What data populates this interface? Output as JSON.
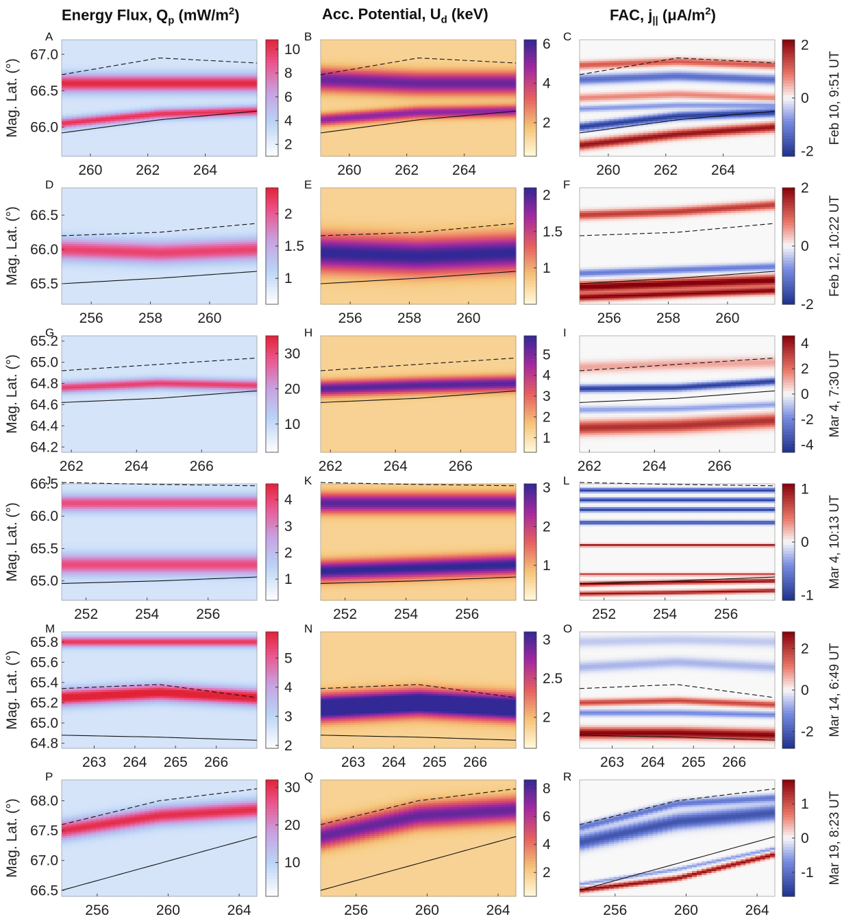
{
  "column_titles": {
    "energy": {
      "main": "Energy Flux, Q",
      "sub": "p",
      "unit": " (mW/m",
      "sup": "2",
      "close": ")"
    },
    "potential": {
      "main": "Acc. Potential, U",
      "sub": "d",
      "unit": " (keV)"
    },
    "fac": {
      "main": "FAC, j",
      "sub": "||",
      "unit": " (μA/m",
      "sup": "2",
      "close": ")"
    }
  },
  "ylabel": "Mag. Lat. (°)",
  "chart_data": [
    {
      "type": "heatmap",
      "panel": "A",
      "quantity": "Energy Flux, Qp (mW/m2)",
      "row_label": "Feb 10, 9:51 UT",
      "xlim": [
        259,
        265.8
      ],
      "xticks": [
        "260",
        "262",
        "264"
      ],
      "ylim": [
        65.6,
        67.2
      ],
      "yticks": [
        "66.0",
        "66.5",
        "67.0"
      ],
      "clim": [
        1,
        10.8
      ],
      "cticks": [
        "2",
        "4",
        "6",
        "8",
        "10"
      ],
      "colormap": "bluered",
      "bands": [
        {
          "y": [
            66.6,
            66.6,
            66.6
          ],
          "w": 0.12,
          "a": 9.5
        },
        {
          "y": [
            66.05,
            66.18,
            66.22
          ],
          "w": 0.07,
          "a": 9
        }
      ]
    },
    {
      "type": "heatmap",
      "panel": "B",
      "quantity": "Acc. Potential, Ud (keV)",
      "row_label": "Feb 10, 9:51 UT",
      "xlim": [
        259,
        265.8
      ],
      "xticks": [
        "260",
        "262",
        "264"
      ],
      "ylim": [
        65.6,
        67.2
      ],
      "yticks": [
        "66.0",
        "66.5",
        "67.0"
      ],
      "clim": [
        0.3,
        6.2
      ],
      "cticks": [
        "2",
        "4",
        "6"
      ],
      "colormap": "plasma",
      "bands": [
        {
          "y": [
            66.65,
            66.6,
            66.6
          ],
          "w": 0.15,
          "a": 5
        },
        {
          "y": [
            66.1,
            66.2,
            66.22
          ],
          "w": 0.08,
          "a": 4.5
        }
      ]
    },
    {
      "type": "heatmap",
      "panel": "C",
      "quantity": "FAC, j|| (μA/m2)",
      "row_label": "Feb 10, 9:51 UT",
      "xlim": [
        259,
        265.8
      ],
      "xticks": [
        "260",
        "262",
        "264"
      ],
      "ylim": [
        65.6,
        67.2
      ],
      "yticks": [
        "66.0",
        "66.5",
        "67.0"
      ],
      "clim": [
        -2.2,
        2.2
      ],
      "cticks": [
        "2",
        "0",
        "-2"
      ],
      "colormap": "diverging",
      "bands": [
        {
          "y": [
            66.0,
            66.15,
            66.2
          ],
          "w": 0.05,
          "a": -2
        },
        {
          "y": [
            65.75,
            65.9,
            66.0
          ],
          "w": 0.06,
          "a": 2
        },
        {
          "y": [
            66.85,
            66.9,
            66.85
          ],
          "w": 0.05,
          "a": 1.2
        },
        {
          "y": [
            66.65,
            66.7,
            66.65
          ],
          "w": 0.06,
          "a": -1.3
        },
        {
          "y": [
            66.4,
            66.45,
            66.4
          ],
          "w": 0.05,
          "a": 0.8
        },
        {
          "y": [
            66.25,
            66.3,
            66.3
          ],
          "w": 0.04,
          "a": -0.8
        }
      ]
    },
    {
      "type": "heatmap",
      "panel": "D",
      "quantity": "Energy Flux, Qp (mW/m2)",
      "row_label": "Feb 12, 10:22 UT",
      "xlim": [
        255,
        261.6
      ],
      "xticks": [
        "256",
        "258",
        "260"
      ],
      "ylim": [
        65.2,
        66.9
      ],
      "yticks": [
        "65.5",
        "66.0",
        "66.5"
      ],
      "clim": [
        0.6,
        2.4
      ],
      "cticks": [
        "1",
        "1.5",
        "2"
      ],
      "colormap": "bluered",
      "bands": [
        {
          "y": [
            66.0,
            65.95,
            66.0
          ],
          "w": 0.15,
          "a": 1.8
        }
      ]
    },
    {
      "type": "heatmap",
      "panel": "E",
      "quantity": "Acc. Potential, Ud (keV)",
      "row_label": "Feb 12, 10:22 UT",
      "xlim": [
        255,
        261.6
      ],
      "xticks": [
        "256",
        "258",
        "260"
      ],
      "ylim": [
        65.2,
        66.9
      ],
      "yticks": [
        "66.0",
        "66.5"
      ],
      "clim": [
        0.5,
        2.1
      ],
      "cticks": [
        "1",
        "1.5",
        "2"
      ],
      "colormap": "plasma",
      "bands": [
        {
          "y": [
            65.95,
            65.9,
            65.95
          ],
          "w": 0.25,
          "a": 1.8
        }
      ]
    },
    {
      "type": "heatmap",
      "panel": "F",
      "quantity": "FAC, j|| (μA/m2)",
      "row_label": "Feb 12, 10:22 UT",
      "xlim": [
        255,
        261.6
      ],
      "xticks": [
        "256",
        "258",
        "260"
      ],
      "ylim": [
        65.2,
        66.9
      ],
      "yticks": [
        "66.0",
        "66.5"
      ],
      "clim": [
        -2,
        2
      ],
      "cticks": [
        "2",
        "0",
        "-2"
      ],
      "colormap": "diverging",
      "bands": [
        {
          "y": [
            66.5,
            66.55,
            66.65
          ],
          "w": 0.06,
          "a": 1.4
        },
        {
          "y": [
            65.45,
            65.5,
            65.55
          ],
          "w": 0.07,
          "a": 2.2
        },
        {
          "y": [
            65.3,
            65.35,
            65.4
          ],
          "w": 0.05,
          "a": 2
        },
        {
          "y": [
            65.65,
            65.7,
            65.75
          ],
          "w": 0.05,
          "a": -1
        }
      ]
    },
    {
      "type": "heatmap",
      "panel": "G",
      "quantity": "Energy Flux, Qp (mW/m2)",
      "row_label": "Mar 4, 7:30 UT",
      "xlim": [
        261.7,
        267.7
      ],
      "xticks": [
        "262",
        "264",
        "266"
      ],
      "ylim": [
        64.15,
        65.25
      ],
      "yticks": [
        "64.2",
        "64.4",
        "64.6",
        "64.8",
        "65.0",
        "65.2"
      ],
      "clim": [
        2,
        35
      ],
      "cticks": [
        "10",
        "20",
        "30"
      ],
      "colormap": "bluered",
      "bands": [
        {
          "y": [
            64.76,
            64.8,
            64.78
          ],
          "w": 0.05,
          "a": 28
        }
      ]
    },
    {
      "type": "heatmap",
      "panel": "H",
      "quantity": "Acc. Potential, Ud (keV)",
      "row_label": "Mar 4, 7:30 UT",
      "xlim": [
        261.7,
        267.7
      ],
      "xticks": [
        "262",
        "264",
        "266"
      ],
      "ylim": [
        64.15,
        65.25
      ],
      "yticks": [
        "64.2",
        "64.4"
      ],
      "clim": [
        0.3,
        5.9
      ],
      "cticks": [
        "1",
        "2",
        "3",
        "4",
        "5"
      ],
      "colormap": "plasma",
      "bands": [
        {
          "y": [
            64.75,
            64.78,
            64.8
          ],
          "w": 0.07,
          "a": 5
        }
      ]
    },
    {
      "type": "heatmap",
      "panel": "I",
      "quantity": "FAC, j|| (μA/m2)",
      "row_label": "Mar 4, 7:30 UT",
      "xlim": [
        261.7,
        267.7
      ],
      "xticks": [
        "262",
        "264",
        "266"
      ],
      "ylim": [
        64.15,
        65.25
      ],
      "yticks": [
        "64.4",
        "64.6"
      ],
      "clim": [
        -4.6,
        4.6
      ],
      "cticks": [
        "4",
        "2",
        "0",
        "-2",
        "-4"
      ],
      "colormap": "diverging",
      "bands": [
        {
          "y": [
            64.75,
            64.76,
            64.82
          ],
          "w": 0.03,
          "a": -4.2
        },
        {
          "y": [
            64.38,
            64.4,
            64.45
          ],
          "w": 0.06,
          "a": 3.5
        },
        {
          "y": [
            64.95,
            64.98,
            65.0
          ],
          "w": 0.05,
          "a": 1.2
        },
        {
          "y": [
            64.55,
            64.56,
            64.6
          ],
          "w": 0.03,
          "a": -1.5
        }
      ]
    },
    {
      "type": "heatmap",
      "panel": "J",
      "quantity": "Energy Flux, Qp (mW/m2)",
      "row_label": "Mar 4, 10:13 UT",
      "xlim": [
        251.2,
        257.6
      ],
      "xticks": [
        "252",
        "254",
        "256"
      ],
      "ylim": [
        64.7,
        66.5
      ],
      "yticks": [
        "65.0",
        "65.5",
        "66.0",
        "66.5"
      ],
      "clim": [
        0.2,
        4.6
      ],
      "cticks": [
        "1",
        "2",
        "3",
        "4"
      ],
      "colormap": "bluered",
      "bands": [
        {
          "y": [
            66.2,
            66.2,
            66.2
          ],
          "w": 0.12,
          "a": 3.5
        },
        {
          "y": [
            65.25,
            65.25,
            65.25
          ],
          "w": 0.15,
          "a": 3.5
        }
      ]
    },
    {
      "type": "heatmap",
      "panel": "K",
      "quantity": "Acc. Potential, Ud (keV)",
      "row_label": "Mar 4, 10:13 UT",
      "xlim": [
        251.2,
        257.6
      ],
      "xticks": [
        "252",
        "254",
        "256"
      ],
      "ylim": [
        64.7,
        66.5
      ],
      "yticks": [
        "65.0",
        "65.5",
        "66.0"
      ],
      "clim": [
        0.1,
        3.1
      ],
      "cticks": [
        "1",
        "2",
        "3"
      ],
      "colormap": "plasma",
      "bands": [
        {
          "y": [
            66.2,
            66.2,
            66.2
          ],
          "w": 0.15,
          "a": 2.6
        },
        {
          "y": [
            65.15,
            65.2,
            65.25
          ],
          "w": 0.15,
          "a": 2.9
        }
      ]
    },
    {
      "type": "heatmap",
      "panel": "L",
      "quantity": "FAC, j|| (μA/m2)",
      "row_label": "Mar 4, 10:13 UT",
      "xlim": [
        251.2,
        257.6
      ],
      "xticks": [
        "252",
        "254",
        "256"
      ],
      "ylim": [
        64.7,
        66.5
      ],
      "yticks": [
        "65.0"
      ],
      "clim": [
        -1.1,
        1.1
      ],
      "cticks": [
        "1",
        "0",
        "-1"
      ],
      "colormap": "diverging",
      "bands": [
        {
          "y": [
            66.4,
            66.4,
            66.4
          ],
          "w": 0.03,
          "a": -1
        },
        {
          "y": [
            66.25,
            66.25,
            66.25
          ],
          "w": 0.03,
          "a": -1
        },
        {
          "y": [
            66.1,
            66.1,
            66.1
          ],
          "w": 0.03,
          "a": -1
        },
        {
          "y": [
            65.9,
            65.9,
            65.9
          ],
          "w": 0.03,
          "a": -0.9
        },
        {
          "y": [
            65.55,
            65.55,
            65.55
          ],
          "w": 0.02,
          "a": 1
        },
        {
          "y": [
            65.1,
            65.1,
            65.1
          ],
          "w": 0.02,
          "a": 0.7
        },
        {
          "y": [
            64.95,
            64.98,
            65.0
          ],
          "w": 0.03,
          "a": 1.1
        },
        {
          "y": [
            64.8,
            64.82,
            64.85
          ],
          "w": 0.03,
          "a": 1
        }
      ]
    },
    {
      "type": "heatmap",
      "panel": "M",
      "quantity": "Energy Flux, Qp (mW/m2)",
      "row_label": "Mar 14, 6:49 UT",
      "xlim": [
        262.2,
        267
      ],
      "xticks": [
        "263",
        "264",
        "265",
        "266"
      ],
      "ylim": [
        64.75,
        65.9
      ],
      "yticks": [
        "64.8",
        "65.0",
        "65.2",
        "65.4",
        "65.6",
        "65.8"
      ],
      "clim": [
        1.9,
        5.9
      ],
      "cticks": [
        "2",
        "3",
        "4",
        "5"
      ],
      "colormap": "bluered",
      "bands": [
        {
          "y": [
            65.25,
            65.3,
            65.25
          ],
          "w": 0.08,
          "a": 5.2
        },
        {
          "y": [
            65.8,
            65.8,
            65.8
          ],
          "w": 0.05,
          "a": 4.5
        }
      ]
    },
    {
      "type": "heatmap",
      "panel": "N",
      "quantity": "Acc. Potential, Ud (keV)",
      "row_label": "Mar 14, 6:49 UT",
      "xlim": [
        262.2,
        267
      ],
      "xticks": [
        "263",
        "264",
        "265",
        "266"
      ],
      "ylim": [
        64.75,
        65.9
      ],
      "yticks": [
        "65.0",
        "65.4"
      ],
      "clim": [
        1.6,
        3.1
      ],
      "cticks": [
        "2",
        "2.5",
        "3"
      ],
      "colormap": "plasma",
      "bands": [
        {
          "y": [
            65.15,
            65.2,
            65.15
          ],
          "w": 0.12,
          "a": 2.9
        }
      ]
    },
    {
      "type": "heatmap",
      "panel": "O",
      "quantity": "FAC, j|| (μA/m2)",
      "row_label": "Mar 14, 6:49 UT",
      "xlim": [
        262.2,
        267
      ],
      "xticks": [
        "263",
        "264",
        "265",
        "266"
      ],
      "ylim": [
        64.75,
        65.9
      ],
      "yticks": [
        "65.0"
      ],
      "clim": [
        -2.8,
        2.8
      ],
      "cticks": [
        "2",
        "0",
        "-2"
      ],
      "colormap": "diverging",
      "bands": [
        {
          "y": [
            64.9,
            64.9,
            64.88
          ],
          "w": 0.05,
          "a": 2.8
        },
        {
          "y": [
            65.2,
            65.22,
            65.18
          ],
          "w": 0.03,
          "a": 1.8
        },
        {
          "y": [
            65.1,
            65.1,
            65.08
          ],
          "w": 0.03,
          "a": -1.2
        },
        {
          "y": [
            65.55,
            65.6,
            65.55
          ],
          "w": 0.05,
          "a": -0.7
        },
        {
          "y": [
            65.8,
            65.82,
            65.8
          ],
          "w": 0.05,
          "a": -0.5
        }
      ]
    },
    {
      "type": "heatmap",
      "panel": "P",
      "quantity": "Energy Flux, Qp (mW/m2)",
      "row_label": "Mar 19, 8:23 UT",
      "xlim": [
        254,
        265
      ],
      "xticks": [
        "256",
        "260",
        "264"
      ],
      "ylim": [
        66.4,
        68.35
      ],
      "yticks": [
        "66.5",
        "67.0",
        "67.5",
        "68.0"
      ],
      "clim": [
        1,
        32
      ],
      "cticks": [
        "10",
        "20",
        "30"
      ],
      "colormap": "bluered",
      "bands": [
        {
          "y": [
            67.5,
            67.75,
            67.85
          ],
          "w": 0.15,
          "a": 28
        }
      ]
    },
    {
      "type": "heatmap",
      "panel": "Q",
      "quantity": "Acc. Potential, Ud (keV)",
      "row_label": "Mar 19, 8:23 UT",
      "xlim": [
        254,
        265
      ],
      "xticks": [
        "256",
        "260",
        "264"
      ],
      "ylim": [
        66.4,
        68.35
      ],
      "yticks": [
        "67.0",
        "68.0"
      ],
      "clim": [
        0.3,
        8.6
      ],
      "cticks": [
        "2",
        "4",
        "6",
        "8"
      ],
      "colormap": "plasma",
      "bands": [
        {
          "y": [
            67.4,
            67.75,
            67.85
          ],
          "w": 0.2,
          "a": 7
        }
      ]
    },
    {
      "type": "heatmap",
      "panel": "R",
      "quantity": "FAC, j|| (μA/m2)",
      "row_label": "Mar 19, 8:23 UT",
      "xlim": [
        254,
        265
      ],
      "xticks": [
        "256",
        "260",
        "264"
      ],
      "ylim": [
        66.4,
        68.35
      ],
      "yticks": [
        "67.0"
      ],
      "clim": [
        -1.7,
        1.7
      ],
      "cticks": [
        "1",
        "0",
        "-1"
      ],
      "colormap": "diverging",
      "bands": [
        {
          "y": [
            67.3,
            67.65,
            67.8
          ],
          "w": 0.12,
          "a": -1.3
        },
        {
          "y": [
            67.55,
            67.95,
            68.05
          ],
          "w": 0.06,
          "a": -0.9
        },
        {
          "y": [
            66.5,
            66.7,
            67.1
          ],
          "w": 0.04,
          "a": 1.6
        },
        {
          "y": [
            66.6,
            66.85,
            67.2
          ],
          "w": 0.03,
          "a": -0.6
        }
      ]
    }
  ],
  "boundaries": [
    {
      "panels": [
        "A",
        "B",
        "C"
      ],
      "dashed": [
        66.72,
        66.95,
        66.88
      ],
      "solid": [
        65.92,
        66.1,
        66.22
      ]
    },
    {
      "panels": [
        "D",
        "E",
        "F"
      ],
      "dashed": [
        66.2,
        66.25,
        66.38
      ],
      "solid": [
        65.5,
        65.58,
        65.68
      ]
    },
    {
      "panels": [
        "G",
        "H",
        "I"
      ],
      "dashed": [
        64.92,
        64.98,
        65.04
      ],
      "solid": [
        64.62,
        64.66,
        64.73
      ]
    },
    {
      "panels": [
        "J",
        "K",
        "L"
      ],
      "dashed": [
        66.52,
        66.49,
        66.47
      ],
      "solid": [
        64.96,
        65.0,
        65.06
      ]
    },
    {
      "panels": [
        "M",
        "N",
        "O"
      ],
      "dashed": [
        65.34,
        65.38,
        65.25
      ],
      "solid": [
        64.88,
        64.86,
        64.83
      ]
    },
    {
      "panels": [
        "P",
        "Q",
        "R"
      ],
      "dashed": [
        67.6,
        68.0,
        68.2
      ],
      "solid": [
        66.5,
        66.95,
        67.4
      ]
    }
  ]
}
